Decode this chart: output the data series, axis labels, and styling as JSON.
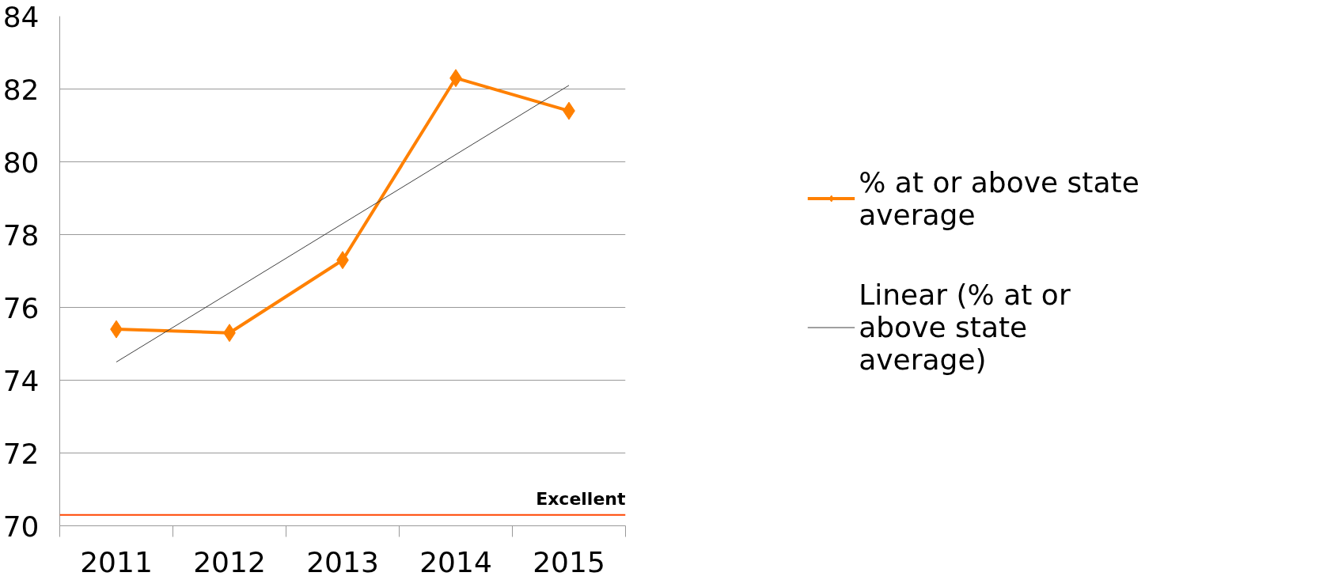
{
  "chart_data": {
    "type": "line",
    "categories": [
      "2011",
      "2012",
      "2013",
      "2014",
      "2015"
    ],
    "series": [
      {
        "name": "% at or above state average",
        "color": "#ff8000",
        "values": [
          75.4,
          75.3,
          77.3,
          82.3,
          81.4
        ],
        "marker": "diamond"
      },
      {
        "name": "Linear (% at or above state average)",
        "color": "#404040",
        "type": "line",
        "values": [
          74.5,
          76.4,
          78.3,
          80.2,
          82.1
        ],
        "marker": "none"
      }
    ],
    "ylim": [
      70,
      84
    ],
    "yticks": [
      70,
      72,
      74,
      76,
      78,
      80,
      82,
      84
    ],
    "grid": "y",
    "legend": "right",
    "ref_lines": [
      {
        "axis": "y",
        "value": 70.3,
        "label": "Excellent",
        "color": "#ff4500"
      }
    ]
  }
}
